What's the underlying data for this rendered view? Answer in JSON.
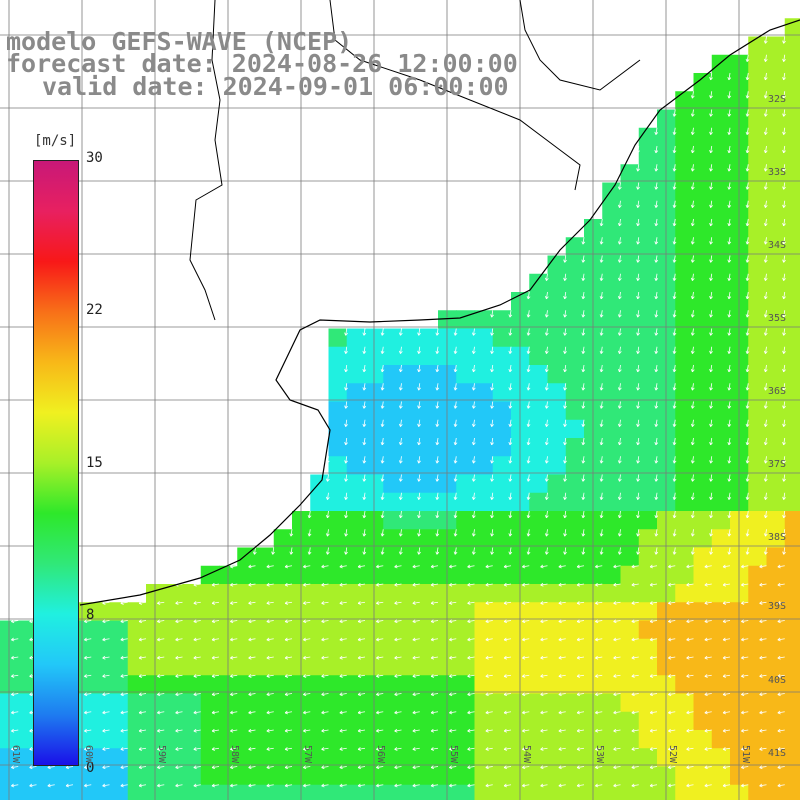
{
  "title": {
    "line1": "modelo GEFS-WAVE (NCEP)",
    "line2": "forecast date: 2024-08-26 12:00:00",
    "line3": "valid date: 2024-09-01 06:00:00"
  },
  "colorbar": {
    "unit": "[m/s]",
    "ticks": [
      "30",
      "22",
      "15",
      "8",
      "0"
    ],
    "colors": [
      "#1a10e8",
      "#1e7cf0",
      "#22c8f8",
      "#20f0e0",
      "#30e878",
      "#2ee82a",
      "#a8f028",
      "#f0f020",
      "#f8b818",
      "#f87018",
      "#f81818",
      "#e82060",
      "#c81878"
    ]
  },
  "map": {
    "lat_labels": [
      "32S",
      "33S",
      "34S",
      "35S",
      "36S",
      "37S",
      "38S",
      "39S",
      "40S",
      "41S"
    ],
    "lon_labels": [
      "61W",
      "60W",
      "59W",
      "58W",
      "57W",
      "56W",
      "55W",
      "54W",
      "53W",
      "52W",
      "51W",
      "50W",
      "49W"
    ],
    "land_color": "#ffffff",
    "coast_color": "#000000",
    "grid_color": "#7a7a7a",
    "arrow_color": "#ffffff"
  }
}
